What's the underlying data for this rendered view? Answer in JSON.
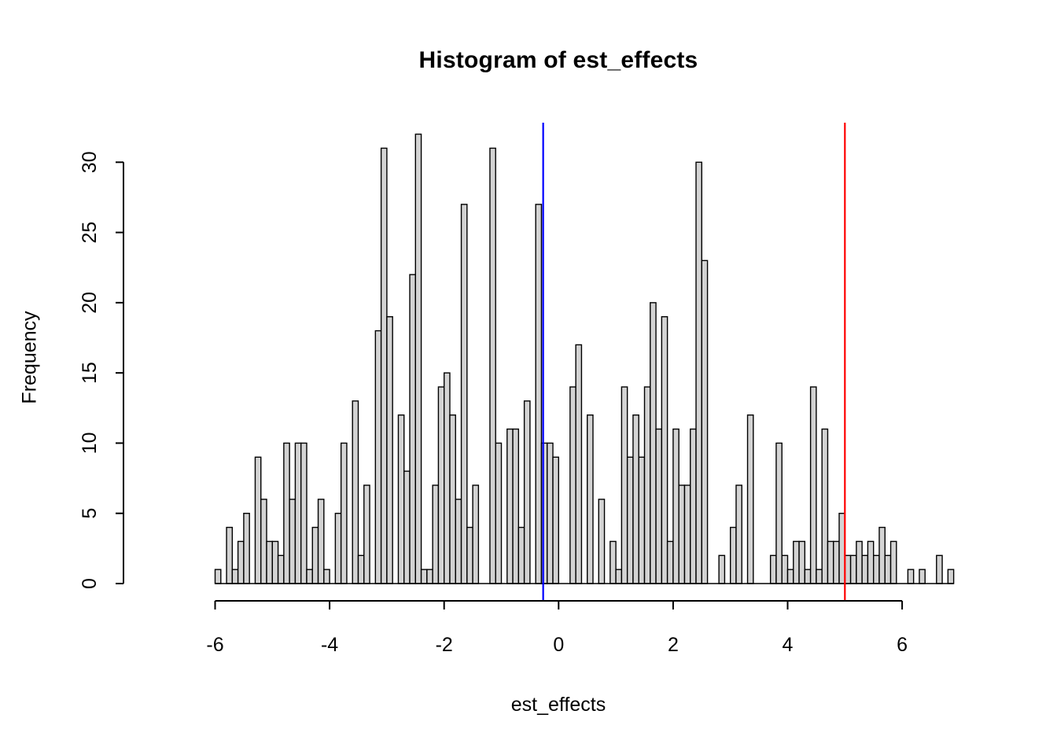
{
  "title": "Histogram of est_effects",
  "xlabel": "est_effects",
  "ylabel": "Frequency",
  "chart_data": {
    "type": "bar",
    "subtype": "histogram",
    "title": "Histogram of est_effects",
    "xlabel": "est_effects",
    "ylabel": "Frequency",
    "bin_start": -6.0,
    "bin_width": 0.1,
    "counts": [
      1,
      0,
      4,
      1,
      3,
      5,
      0,
      9,
      6,
      3,
      3,
      2,
      10,
      6,
      10,
      10,
      1,
      4,
      6,
      1,
      0,
      5,
      10,
      0,
      13,
      2,
      7,
      0,
      18,
      31,
      19,
      0,
      12,
      8,
      22,
      32,
      1,
      1,
      7,
      14,
      15,
      12,
      6,
      27,
      4,
      7,
      0,
      0,
      31,
      10,
      0,
      11,
      11,
      4,
      13,
      0,
      27,
      10,
      10,
      9,
      0,
      0,
      14,
      17,
      0,
      12,
      0,
      6,
      0,
      3,
      1,
      14,
      9,
      12,
      9,
      14,
      20,
      11,
      19,
      3,
      11,
      7,
      7,
      11,
      30,
      23,
      0,
      0,
      2,
      0,
      4,
      7,
      0,
      12,
      0,
      0,
      0,
      2,
      10,
      2,
      1,
      3,
      3,
      1,
      14,
      1,
      11,
      3,
      3,
      5,
      2,
      2,
      3,
      2,
      3,
      2,
      4,
      2,
      3,
      0,
      0,
      1,
      0,
      1,
      0,
      0,
      2,
      0,
      1
    ],
    "xticks": [
      -6,
      -4,
      -2,
      0,
      2,
      4,
      6
    ],
    "yticks": [
      0,
      5,
      10,
      15,
      20,
      25,
      30
    ],
    "xlim": [
      -6,
      7
    ],
    "ylim": [
      0,
      30
    ],
    "grid": false,
    "legend": "none",
    "bar_fill": "#D3D3D3",
    "bar_stroke": "#000000",
    "vlines": [
      {
        "x": -0.27,
        "color": "#0000FF",
        "name": "blue-vertical-line"
      },
      {
        "x": 5.0,
        "color": "#FF0000",
        "name": "red-vertical-line"
      }
    ]
  }
}
